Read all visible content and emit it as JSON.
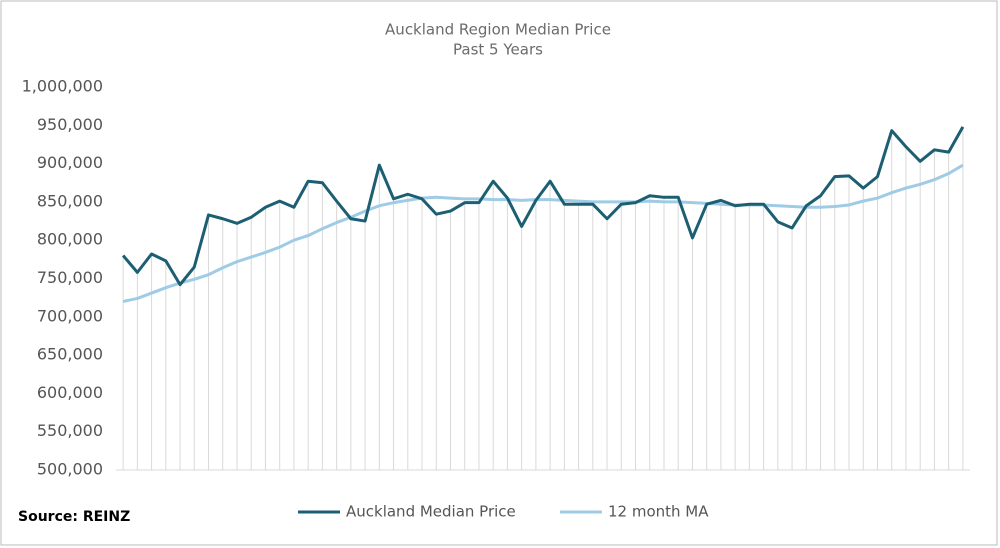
{
  "chart_data": {
    "type": "line",
    "title": "Auckland Region Median Price",
    "subtitle": "Past 5 Years",
    "source": "Source: REINZ",
    "categories": [
      null,
      null,
      null,
      null,
      null,
      null,
      null,
      null,
      null,
      null,
      null,
      null,
      null,
      null,
      null,
      null,
      null,
      null,
      null,
      null,
      null,
      null,
      null,
      null,
      null,
      null,
      null,
      null,
      null,
      null,
      null,
      null,
      null,
      null,
      null,
      null,
      null,
      null,
      null,
      null,
      null,
      null,
      null,
      null,
      null,
      null,
      null,
      null,
      null,
      null,
      null,
      null,
      null,
      null,
      null,
      null,
      null,
      null,
      null,
      null
    ],
    "series": [
      {
        "name": "Auckland Median Price",
        "color": "#1c5f73",
        "values": [
          780000,
          758000,
          782000,
          773000,
          742000,
          765000,
          833000,
          828000,
          822000,
          830000,
          843000,
          851000,
          843000,
          877000,
          875000,
          851000,
          828000,
          825000,
          898000,
          854000,
          860000,
          854000,
          834000,
          838000,
          849000,
          849000,
          877000,
          855000,
          818000,
          852000,
          877000,
          847000,
          847000,
          847000,
          828000,
          847000,
          849000,
          858000,
          856000,
          856000,
          803000,
          847000,
          852000,
          845000,
          847000,
          847000,
          824000,
          816000,
          845000,
          858000,
          883000,
          884000,
          868000,
          883000,
          943000,
          922000,
          903000,
          918000,
          915000,
          948000
        ]
      },
      {
        "name": "12 month MA",
        "color": "#9fcbe5",
        "values": [
          720000,
          724000,
          731000,
          738000,
          744000,
          749000,
          755000,
          764000,
          772000,
          778000,
          784000,
          791000,
          800000,
          806000,
          815000,
          823000,
          830000,
          838000,
          845000,
          849000,
          852000,
          855000,
          856000,
          855000,
          854000,
          854000,
          853000,
          853000,
          852000,
          853000,
          853000,
          852000,
          851000,
          850000,
          850000,
          850000,
          850000,
          851000,
          850000,
          850000,
          849000,
          848000,
          847000,
          846000,
          846000,
          846000,
          845000,
          844000,
          843000,
          843000,
          844000,
          846000,
          851000,
          855000,
          862000,
          868000,
          873000,
          879000,
          887000,
          898000
        ]
      }
    ],
    "ylim": [
      500000,
      1000000
    ],
    "yticks": [
      {
        "value": 500000,
        "label": "500,000"
      },
      {
        "value": 550000,
        "label": "550,000"
      },
      {
        "value": 600000,
        "label": "600,000"
      },
      {
        "value": 650000,
        "label": "650,000"
      },
      {
        "value": 700000,
        "label": "700,000"
      },
      {
        "value": 750000,
        "label": "750,000"
      },
      {
        "value": 800000,
        "label": "800,000"
      },
      {
        "value": 850000,
        "label": "850,000"
      },
      {
        "value": 900000,
        "label": "900,000"
      },
      {
        "value": 950000,
        "label": "950,000"
      },
      {
        "value": 1000000,
        "label": "1,000,000"
      }
    ],
    "grid": false,
    "legend": "bottom"
  }
}
